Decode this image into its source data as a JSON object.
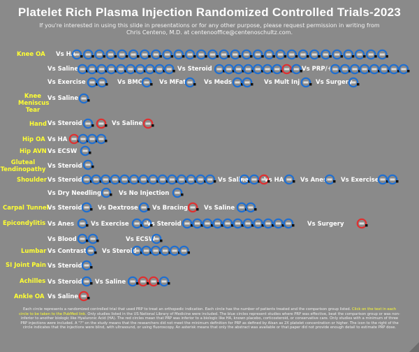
{
  "title": "Platelet Rich Plasma Injection Randomized Controlled Trials-2023",
  "subtitle": "If you're interested in using this slide in presentations or for any other purpose, please request permission in writing from Chris Centeno, M.D. at centenooffice@centenoschultz.com.",
  "colors": {
    "effective": "#1f6fd1",
    "ineffective": "#e03030",
    "condition": "#ffff33"
  },
  "conditions": {
    "knee_oa": "Knee OA",
    "knee_meniscus": "Knee Meniscus Tear",
    "hand": "Hand",
    "hip_oa": "Hip OA",
    "hip_avn": "Hip AVN",
    "gluteal": "Gluteal Tendinopathy",
    "shoulder": "Shoulder",
    "carpal": "Carpal Tunnel",
    "epicondylitis": "Epicondylitis",
    "lumbar": "Lumbar",
    "si_joint": "SI Joint Pain",
    "achilles": "Achilles",
    "ankle_oa": "Ankle OA"
  },
  "comparisons": {
    "knee_ha": "Vs HA",
    "knee_saline": "Vs Saline",
    "knee_steroid": "Vs Steroid",
    "knee_prp": "Vs PRP/+",
    "knee_exercise": "Vs Exercise",
    "knee_bmc": "Vs BMC",
    "knee_mfat": "Vs MFat",
    "knee_meds": "Vs Meds",
    "knee_multinj": "Vs Mult Inj",
    "knee_surgery": "Vs Surgery",
    "men_saline": "Vs Saline",
    "hand_steroid": "Vs Steroid",
    "hand_saline": "Vs Saline",
    "hip_ha": "Vs HA",
    "avn_ecsw": "Vs ECSW",
    "glut_steroid": "Vs Steroid",
    "sh_steroid": "Vs Steroid",
    "sh_saline": "Vs Saline",
    "sh_ha": "Vs HA",
    "sh_anes": "Vs Anes",
    "sh_exercise": "Vs Exercise",
    "sh_dry": "Vs Dry Needling",
    "sh_noinj": "Vs No Injection",
    "ct_steroid": "Vs Steroid",
    "ct_dextrose": "Vs Dextrose",
    "ct_bracing": "Vs Bracing",
    "ct_saline": "Vs Saline",
    "ep_anes": "Vs Anes",
    "ep_exercise": "Vs Exercise",
    "ep_steroid": "Vs Steroid",
    "ep_surgery": "Vs Surgery",
    "ep_blood": "Vs Blood",
    "ep_ecsw": "Vs ECSW",
    "lu_contrast": "Vs Contrast",
    "lu_steroid": "Vs Steroid",
    "si_steroid": "Vs Steroid",
    "ach_steroid": "Vs Steroid",
    "ach_saline": "Vs Saline",
    "ank_saline": "Vs Saline"
  },
  "groups": [
    {
      "id": "knee_ha",
      "circles": "BBBBBBBBBBBBBBBBBBBBBBBBBBBB"
    },
    {
      "id": "knee_saline",
      "circles": "BBBBBBBBBB"
    },
    {
      "id": "knee_steroid",
      "circles": "BBBBBBBRB"
    },
    {
      "id": "knee_prp",
      "circles": "BBBBBBBBBBBBBBBB"
    },
    {
      "id": "knee_exercise",
      "circles": "BB"
    },
    {
      "id": "knee_bmc",
      "circles": "B"
    },
    {
      "id": "knee_mfat",
      "circles": "B"
    },
    {
      "id": "knee_meds",
      "circles": "BB"
    },
    {
      "id": "knee_multinj",
      "circles": "B"
    },
    {
      "id": "knee_surgery",
      "circles": "B"
    },
    {
      "id": "men_saline",
      "circles": "B"
    },
    {
      "id": "hand_steroid",
      "circles": "BR"
    },
    {
      "id": "hand_saline",
      "circles": "R"
    },
    {
      "id": "hip_ha",
      "circles": "RBBB"
    },
    {
      "id": "avn_ecsw",
      "circles": "B"
    },
    {
      "id": "glut_steroid",
      "circles": "B"
    },
    {
      "id": "sh_steroid",
      "circles": "BBBBBBBBBBBBBB"
    },
    {
      "id": "sh_saline",
      "circles": "BBR"
    },
    {
      "id": "sh_ha",
      "circles": "B"
    },
    {
      "id": "sh_anes",
      "circles": "B"
    },
    {
      "id": "sh_exercise",
      "circles": "BB"
    },
    {
      "id": "sh_dry",
      "circles": "B"
    },
    {
      "id": "sh_noinj",
      "circles": "B"
    },
    {
      "id": "ct_steroid",
      "circles": "B"
    },
    {
      "id": "ct_dextrose",
      "circles": "B"
    },
    {
      "id": "ct_bracing",
      "circles": "R"
    },
    {
      "id": "ct_saline",
      "circles": "BB"
    },
    {
      "id": "ep_anes",
      "circles": "B"
    },
    {
      "id": "ep_exercise",
      "circles": "BB"
    },
    {
      "id": "ep_steroid",
      "circles": "BBBBBBBBBBB"
    },
    {
      "id": "ep_surgery",
      "circles": "R"
    },
    {
      "id": "ep_blood",
      "circles": "BB"
    },
    {
      "id": "ep_ecsw",
      "circles": "B"
    },
    {
      "id": "lu_contrast",
      "circles": "B"
    },
    {
      "id": "lu_steroid",
      "circles": "BBBBBB"
    },
    {
      "id": "si_steroid",
      "circles": "B"
    },
    {
      "id": "ach_steroid",
      "circles": "B"
    },
    {
      "id": "ach_saline",
      "circles": "BRRB"
    },
    {
      "id": "ank_saline",
      "circles": "R"
    }
  ],
  "footer": {
    "part1": "Each circle represents a randomized controlled trial that used PRP to treat an orthopedic indication. Each circle has the number of patients treated and the comparison group listed.",
    "link": "Click on the text in each circle to be taken to the PubMed link.",
    "part2": "Only studies listed in the US National Library of Medicine were included. The blue circles represent studies where PRP was effective, beat the comparison group or was non-inferior to another biologic like Hyaluronic Acid (HA). The red circles mean that PRP was inferior to a biologic like HA, known placebo, corticosteroid, or conservative care. Only studies with a minimum of three PRP injections were included. A \"?\" on the study means that the researchers did not meet the minimum definition for PRP as defined by Alsan as 2X platelet concentration or higher. The icon to the right of the circle indicates that the injections were blind, with ultrasound, or using fluoroscopy. An asterisk means that only the abstract was available or that paper did not provide enough detail to estimate PRP dose."
  }
}
